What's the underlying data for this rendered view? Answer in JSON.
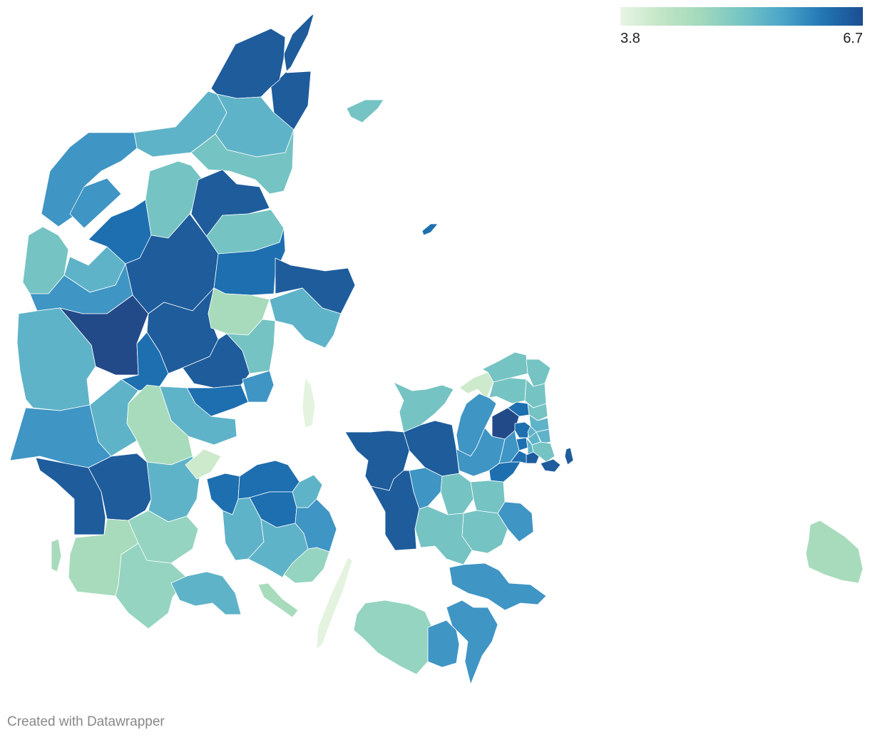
{
  "legend": {
    "min_label": "3.8",
    "max_label": "6.7",
    "min": 3.8,
    "max": 6.7,
    "gradient": [
      "#e8f5e6",
      "#c3e5c6",
      "#a2d9bd",
      "#76c4c4",
      "#4ba6c8",
      "#2277b4",
      "#1b4d91"
    ]
  },
  "credit": "Created with Datawrapper",
  "colors": {
    "lightest": "#e3f3df",
    "very_light": "#cdeacc",
    "light": "#a8dbbc",
    "light_mid": "#95d4c0",
    "mid_light": "#76c3c3",
    "mid": "#5fb3c8",
    "mid_dark": "#3f95c4",
    "dark": "#1d6fb0",
    "darker": "#1e5c9c",
    "darkest": "#234a88"
  },
  "regions": [
    {
      "name": "Frederikshavn",
      "shade": "darker"
    },
    {
      "name": "Hjørring",
      "shade": "darker"
    },
    {
      "name": "Læsø",
      "shade": "mid_light"
    },
    {
      "name": "Jammerbugt",
      "shade": "mid"
    },
    {
      "name": "Brønderslev",
      "shade": "mid"
    },
    {
      "name": "Aalborg",
      "shade": "mid_light"
    },
    {
      "name": "Thisted",
      "shade": "mid_dark"
    },
    {
      "name": "Morsø",
      "shade": "mid_dark"
    },
    {
      "name": "Vesthimmerland",
      "shade": "mid_light"
    },
    {
      "name": "Rebild",
      "shade": "darker"
    },
    {
      "name": "Mariagerfjord",
      "shade": "mid_light"
    },
    {
      "name": "Lemvig",
      "shade": "mid_light"
    },
    {
      "name": "Struer",
      "shade": "mid"
    },
    {
      "name": "Skive",
      "shade": "dark"
    },
    {
      "name": "Viborg",
      "shade": "darker"
    },
    {
      "name": "Randers",
      "shade": "dark"
    },
    {
      "name": "Norddjurs",
      "shade": "darker"
    },
    {
      "name": "Syddjurs",
      "shade": "mid"
    },
    {
      "name": "Anholt",
      "shade": "dark"
    },
    {
      "name": "Holstebro",
      "shade": "mid_dark"
    },
    {
      "name": "Herning",
      "shade": "darkest"
    },
    {
      "name": "Silkeborg",
      "shade": "darker"
    },
    {
      "name": "Favrskov",
      "shade": "light"
    },
    {
      "name": "Aarhus",
      "shade": "mid_light"
    },
    {
      "name": "Ringkøbing-Skjern",
      "shade": "mid"
    },
    {
      "name": "Ikast-Brande",
      "shade": "dark"
    },
    {
      "name": "Skanderborg",
      "shade": "darker"
    },
    {
      "name": "Odder",
      "shade": "mid_dark"
    },
    {
      "name": "Horsens",
      "shade": "dark"
    },
    {
      "name": "Hedensted",
      "shade": "mid"
    },
    {
      "name": "Billund",
      "shade": "light"
    },
    {
      "name": "Vejle",
      "shade": "mid"
    },
    {
      "name": "Varde",
      "shade": "mid_dark"
    },
    {
      "name": "Esbjerg",
      "shade": "darker"
    },
    {
      "name": "Vejen",
      "shade": "darker"
    },
    {
      "name": "Kolding",
      "shade": "mid"
    },
    {
      "name": "Fredericia",
      "shade": "very_light"
    },
    {
      "name": "Fanø",
      "shade": "light"
    },
    {
      "name": "Tønder",
      "shade": "light"
    },
    {
      "name": "Haderslev",
      "shade": "light_mid"
    },
    {
      "name": "Aabenraa",
      "shade": "light_mid"
    },
    {
      "name": "Sønderborg",
      "shade": "mid"
    },
    {
      "name": "Middelfart",
      "shade": "dark"
    },
    {
      "name": "Nordfyn",
      "shade": "dark"
    },
    {
      "name": "Kerteminde",
      "shade": "mid"
    },
    {
      "name": "Odense",
      "shade": "dark"
    },
    {
      "name": "Assens",
      "shade": "mid"
    },
    {
      "name": "Faaborg-Midtfyn",
      "shade": "mid"
    },
    {
      "name": "Nyborg",
      "shade": "mid_dark"
    },
    {
      "name": "Svendborg",
      "shade": "light_mid"
    },
    {
      "name": "Ærø",
      "shade": "light"
    },
    {
      "name": "Langeland",
      "shade": "lightest"
    },
    {
      "name": "Samsø",
      "shade": "lightest"
    },
    {
      "name": "Odsherred",
      "shade": "mid_light"
    },
    {
      "name": "Kalundborg",
      "shade": "darker"
    },
    {
      "name": "Holbæk",
      "shade": "darker"
    },
    {
      "name": "Sorø",
      "shade": "mid_dark"
    },
    {
      "name": "Slagelse",
      "shade": "darker"
    },
    {
      "name": "Ringsted",
      "shade": "mid_light"
    },
    {
      "name": "Køge",
      "shade": "mid_light"
    },
    {
      "name": "Faxe",
      "shade": "mid_light"
    },
    {
      "name": "Næstved",
      "shade": "mid_light"
    },
    {
      "name": "Stevns",
      "shade": "mid_dark"
    },
    {
      "name": "Vordingborg",
      "shade": "mid_dark"
    },
    {
      "name": "Guldborgsund",
      "shade": "mid_dark"
    },
    {
      "name": "Lolland",
      "shade": "light_mid"
    },
    {
      "name": "Halsnæs",
      "shade": "very_light"
    },
    {
      "name": "Gribskov",
      "shade": "mid_light"
    },
    {
      "name": "Helsingør",
      "shade": "mid_light"
    },
    {
      "name": "Hillerød",
      "shade": "mid_light"
    },
    {
      "name": "Fredensborg",
      "shade": "mid_light"
    },
    {
      "name": "Frederikssund",
      "shade": "mid_dark"
    },
    {
      "name": "Egedal",
      "shade": "darkest"
    },
    {
      "name": "Roskilde",
      "shade": "mid_dark"
    },
    {
      "name": "Greve",
      "shade": "dark"
    },
    {
      "name": "Furesø",
      "shade": "dark"
    },
    {
      "name": "Rudersdal",
      "shade": "mid_light"
    },
    {
      "name": "Lyngby-Taarbæk",
      "shade": "mid"
    },
    {
      "name": "Gentofte",
      "shade": "mid"
    },
    {
      "name": "Ballerup",
      "shade": "dark"
    },
    {
      "name": "Herlev",
      "shade": "mid"
    },
    {
      "name": "Gladsaxe",
      "shade": "mid"
    },
    {
      "name": "Albertslund",
      "shade": "dark"
    },
    {
      "name": "Glostrup",
      "shade": "mid"
    },
    {
      "name": "Høje-Taastrup",
      "shade": "mid_dark"
    },
    {
      "name": "Ishøj",
      "shade": "dark"
    },
    {
      "name": "Brøndby",
      "shade": "darker"
    },
    {
      "name": "København",
      "shade": "mid_light"
    },
    {
      "name": "Tårnby",
      "shade": "darker"
    },
    {
      "name": "Dragør",
      "shade": "darker"
    },
    {
      "name": "Bornholm",
      "shade": "light"
    }
  ]
}
